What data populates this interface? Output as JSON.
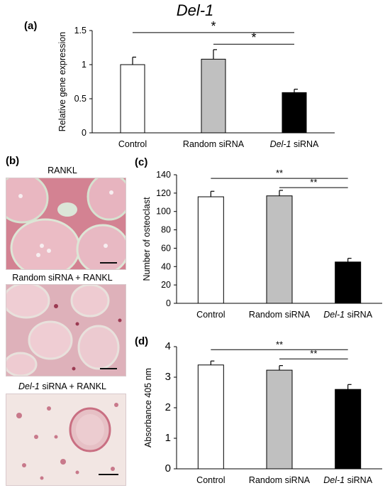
{
  "figure": {
    "panel_labels": {
      "a": "(a)",
      "b": "(b)",
      "c": "(c)",
      "d": "(d)"
    },
    "title_a": "Del-1",
    "micrographs": [
      {
        "label_pre": "",
        "label_post": "RANKL",
        "tone": "#e4b3bd"
      },
      {
        "label_pre": "",
        "label_post": "Random siRNA + RANKL",
        "tone": "#e9c0c7"
      },
      {
        "label_pre": "Del-1",
        "label_post": " siRNA + RANKL",
        "tone": "#eddcd8"
      }
    ]
  },
  "chart_data": [
    {
      "type": "bar",
      "panel": "(a)",
      "title": "Del-1",
      "categories": [
        {
          "italic": "",
          "rest": "Control"
        },
        {
          "italic": "",
          "rest": "Random siRNA"
        },
        {
          "italic": "Del-1",
          "rest": " siRNA"
        }
      ],
      "values": [
        1.0,
        1.08,
        0.59
      ],
      "errors": [
        0.11,
        0.14,
        0.05
      ],
      "colors": [
        "#ffffff",
        "#c0c0c0",
        "#000000"
      ],
      "ylabel": "Relative gene expression",
      "ylim": [
        0,
        1.5
      ],
      "yticks": [
        "0",
        "0.5",
        "1",
        "1.5"
      ],
      "tickvals": [
        0,
        0.5,
        1,
        1.5
      ],
      "significance": [
        {
          "from": 0,
          "to": 2,
          "label": "*",
          "level": 1.47
        },
        {
          "from": 1,
          "to": 2,
          "label": "*",
          "level": 1.3
        }
      ]
    },
    {
      "type": "bar",
      "panel": "(c)",
      "categories": [
        {
          "italic": "",
          "rest": "Control"
        },
        {
          "italic": "",
          "rest": "Random  siRNA"
        },
        {
          "italic": "Del-1",
          "rest": " siRNA"
        }
      ],
      "values": [
        116,
        117,
        45
      ],
      "errors": [
        6,
        6,
        4
      ],
      "colors": [
        "#ffffff",
        "#c0c0c0",
        "#000000"
      ],
      "ylabel": "Number of osteoclast",
      "ylim": [
        0,
        140
      ],
      "yticks": [
        "0",
        "20",
        "40",
        "60",
        "80",
        "100",
        "120",
        "140"
      ],
      "tickvals": [
        0,
        20,
        40,
        60,
        80,
        100,
        120,
        140
      ],
      "significance": [
        {
          "from": 0,
          "to": 2,
          "label": "**",
          "level": 136
        },
        {
          "from": 1,
          "to": 2,
          "label": "**",
          "level": 126
        }
      ]
    },
    {
      "type": "bar",
      "panel": "(d)",
      "categories": [
        {
          "italic": "",
          "rest": "Control"
        },
        {
          "italic": "",
          "rest": "Random  siRNA"
        },
        {
          "italic": "Del-1",
          "rest": " siRNA"
        }
      ],
      "values": [
        3.4,
        3.23,
        2.6
      ],
      "errors": [
        0.13,
        0.15,
        0.16
      ],
      "colors": [
        "#ffffff",
        "#c0c0c0",
        "#000000"
      ],
      "ylabel": "Absorbance 405 nm",
      "ylim": [
        0,
        4
      ],
      "yticks": [
        "0",
        "1",
        "2",
        "3",
        "4"
      ],
      "tickvals": [
        0,
        1,
        2,
        3,
        4
      ],
      "significance": [
        {
          "from": 0,
          "to": 2,
          "label": "**",
          "level": 3.9
        },
        {
          "from": 1,
          "to": 2,
          "label": "**",
          "level": 3.6
        }
      ]
    }
  ]
}
